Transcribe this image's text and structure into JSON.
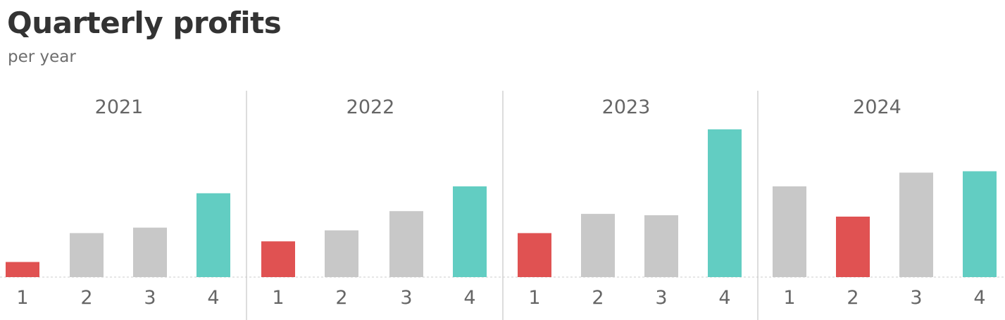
{
  "header": {
    "title": "Quarterly profits",
    "subtitle": "per year"
  },
  "colors": {
    "negative": "#e05252",
    "neutral": "#c8c8c8",
    "best": "#62cdc2",
    "divider": "#dddddd",
    "baseline": "#cccccc"
  },
  "chart_data": {
    "type": "bar",
    "title": "Quarterly profits",
    "subtitle": "per year",
    "xlabel": "",
    "ylabel": "",
    "ylim": [
      0,
      220
    ],
    "grid": false,
    "panels": [
      {
        "year": "2021",
        "categories": [
          "1",
          "2",
          "3",
          "4"
        ],
        "values": [
          22,
          64,
          72,
          122
        ],
        "highlight": [
          "negative",
          "neutral",
          "neutral",
          "best"
        ]
      },
      {
        "year": "2022",
        "categories": [
          "1",
          "2",
          "3",
          "4"
        ],
        "values": [
          52,
          68,
          96,
          132
        ],
        "highlight": [
          "negative",
          "neutral",
          "neutral",
          "best"
        ]
      },
      {
        "year": "2023",
        "categories": [
          "1",
          "2",
          "3",
          "4"
        ],
        "values": [
          64,
          92,
          90,
          215
        ],
        "highlight": [
          "negative",
          "neutral",
          "neutral",
          "best"
        ]
      },
      {
        "year": "2024",
        "categories": [
          "1",
          "2",
          "3",
          "4"
        ],
        "values": [
          132,
          88,
          152,
          154
        ],
        "highlight": [
          "neutral",
          "negative",
          "neutral",
          "best"
        ]
      }
    ]
  }
}
